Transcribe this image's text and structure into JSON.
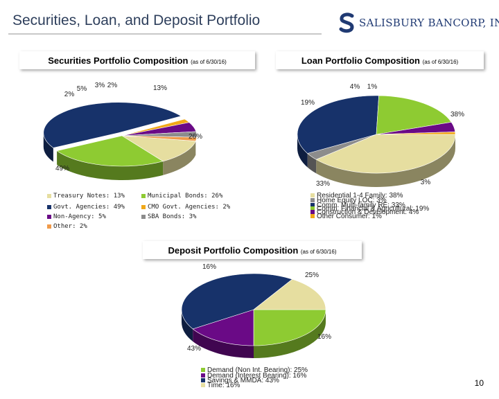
{
  "header": {
    "title": "Securities, Loan, and Deposit Portfolio",
    "logo_text": "SALISBURY BANCORP, INC."
  },
  "page_number": "10",
  "colors": {
    "title": "#2e3f5c",
    "logo": "#203a73"
  },
  "chart_data": [
    {
      "type": "pie",
      "id": "securities",
      "title": "Securities Portfolio Composition",
      "title_note": "(as of 6/30/16)",
      "categories": [
        "Treasury Notes",
        "Municipal Bonds",
        "Govt. Agencies",
        "CMO Govt. Agencies",
        "Non-Agency",
        "SBA Bonds",
        "Other"
      ],
      "values": [
        13,
        26,
        49,
        2,
        5,
        3,
        2
      ],
      "slice_labels": [
        "13%",
        "26%",
        "49%",
        "2%",
        "5%",
        "3%",
        "2%"
      ],
      "legend": [
        "Treasury Notes: 13%",
        "Municipal Bonds: 26%",
        "Govt. Agencies: 49%",
        "CMO Govt. Agencies: 2%",
        "Non-Agency: 5%",
        "SBA Bonds: 3%",
        "Other: 2%"
      ],
      "colors": [
        "#e6dea0",
        "#8ecb32",
        "#17326a",
        "#f0a818",
        "#6a0a86",
        "#8c8c8c",
        "#f09a4a"
      ]
    },
    {
      "type": "pie",
      "id": "loan",
      "title": "Loan Portfolio Composition",
      "title_note": "(as of 6/30/16)",
      "categories": [
        "Residential 1-4 Family",
        "Home Equity LOC",
        "Comm. Multi-family RE",
        "Comm. Financial & Agricultural",
        "Construction & Development",
        "Other Consumer"
      ],
      "values": [
        38,
        3,
        33,
        19,
        4,
        1
      ],
      "slice_labels": [
        "38%",
        "3%",
        "33%",
        "19%",
        "4%",
        "1%"
      ],
      "legend": [
        "Residential 1-4 Family: 38%",
        "Home Equity LOC: 3%",
        "Comm. Multi-family RE: 33%",
        "Comm. Financial & Agricultural: 19%",
        "Construction & Development: 4%",
        "Other Consumer: 1%"
      ],
      "colors": [
        "#e6dea0",
        "#8c8c8c",
        "#17326a",
        "#8ecb32",
        "#6a0a86",
        "#f0a818"
      ]
    },
    {
      "type": "pie",
      "id": "deposit",
      "title": "Deposit Portfolio Composition",
      "title_note": "(as of 6/30/16)",
      "categories": [
        "Demand (Non Int. Bearing)",
        "Demand (Interest Bearing)",
        "Savings & MMDA",
        "Time"
      ],
      "values": [
        25,
        16,
        43,
        16
      ],
      "slice_labels": [
        "25%",
        "16%",
        "43%",
        "16%"
      ],
      "legend": [
        "Demand (Non Int. Bearing): 25%",
        "Demand (Interest Bearing): 16%",
        "Savings & MMDA: 43%",
        "Time: 16%"
      ],
      "colors": [
        "#8ecb32",
        "#6a0a86",
        "#17326a",
        "#e6dea0"
      ]
    }
  ]
}
